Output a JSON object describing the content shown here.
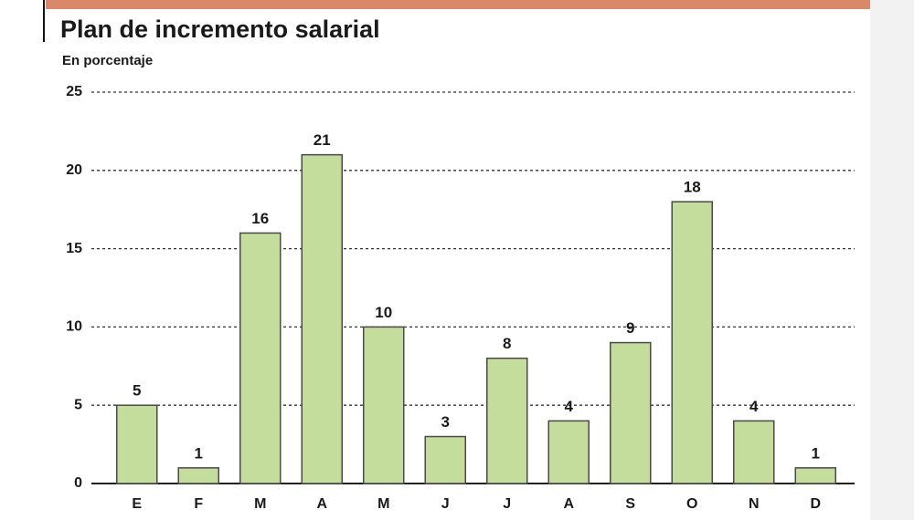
{
  "chart_data": {
    "type": "bar",
    "title": "Plan de incremento salarial",
    "subtitle": "En porcentaje",
    "categories": [
      "E",
      "F",
      "M",
      "A",
      "M",
      "J",
      "J",
      "A",
      "S",
      "O",
      "N",
      "D"
    ],
    "values": [
      5,
      1,
      16,
      21,
      10,
      3,
      8,
      4,
      9,
      18,
      4,
      1
    ],
    "color": "#c4dc9c",
    "ylim": [
      0,
      25
    ],
    "yticks": [
      0,
      5,
      10,
      15,
      20,
      25
    ],
    "grid": true
  }
}
